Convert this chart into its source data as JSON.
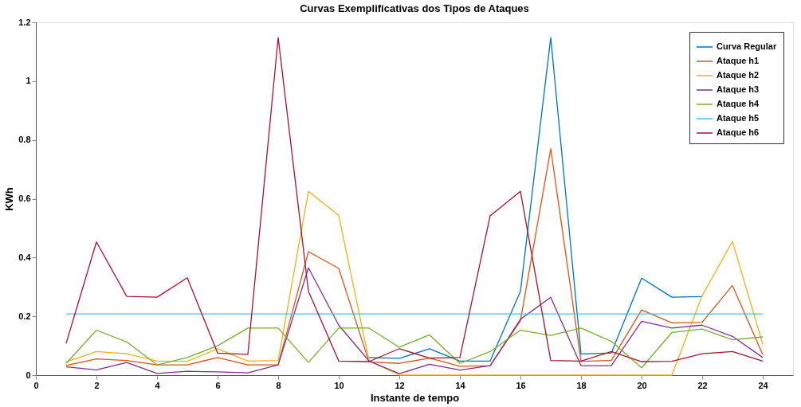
{
  "chart_data": {
    "type": "line",
    "title": "Curvas Exemplificativas dos Tipos de Ataques",
    "xlabel": "Instante de tempo",
    "ylabel": "KWh",
    "x": [
      1,
      2,
      3,
      4,
      5,
      6,
      7,
      8,
      9,
      10,
      11,
      12,
      13,
      14,
      15,
      16,
      17,
      18,
      19,
      20,
      21,
      22,
      23,
      24
    ],
    "xlim": [
      0,
      25
    ],
    "xticks": [
      0,
      2,
      4,
      6,
      8,
      10,
      12,
      14,
      16,
      18,
      20,
      22,
      24
    ],
    "ylim": [
      0,
      1.2
    ],
    "yticks": [
      0,
      0.2,
      0.4,
      0.6,
      0.8,
      1,
      1.2
    ],
    "legend": "top right",
    "series": [
      {
        "name": "Curva Regular",
        "color": "#0072bd",
        "values": [
          null,
          null,
          null,
          null,
          null,
          null,
          null,
          null,
          null,
          null,
          0.06,
          0.057,
          0.09,
          0.048,
          0.048,
          0.285,
          1.148,
          0.072,
          0.075,
          0.33,
          0.265,
          0.267,
          null,
          null
        ]
      },
      {
        "name": "Ataque h1",
        "color": "#d95319",
        "values": [
          0.033,
          0.055,
          0.05,
          0.035,
          0.035,
          0.06,
          0.035,
          0.035,
          0.42,
          0.363,
          0.045,
          0.04,
          0.058,
          0.03,
          0.032,
          0.185,
          0.77,
          0.047,
          0.05,
          0.222,
          0.178,
          0.18,
          0.305,
          0.07
        ]
      },
      {
        "name": "Ataque h2",
        "color": "#edb120",
        "values": [
          0.045,
          0.08,
          0.073,
          0.048,
          0.047,
          0.09,
          0.048,
          0.05,
          0.625,
          0.543,
          0.05,
          0,
          0,
          0,
          0,
          0,
          0,
          0,
          0,
          0,
          0,
          0.27,
          0.455,
          0.105
        ]
      },
      {
        "name": "Ataque h3",
        "color": "#7e2f8e",
        "values": [
          0.028,
          0.018,
          0.043,
          0.006,
          0.013,
          0.011,
          0.008,
          0.035,
          0.365,
          0.17,
          0.048,
          0.005,
          0.037,
          0.017,
          0.032,
          0.19,
          0.265,
          0.032,
          0.032,
          0.183,
          0.16,
          0.17,
          0.132,
          0.06
        ]
      },
      {
        "name": "Ataque h4",
        "color": "#77ac30",
        "values": [
          0.04,
          0.153,
          0.113,
          0.035,
          0.06,
          0.1,
          0.16,
          0.16,
          0.043,
          0.16,
          0.16,
          0.095,
          0.137,
          0.04,
          0.08,
          0.153,
          0.135,
          0.16,
          0.115,
          0.025,
          0.145,
          0.157,
          0.12,
          0.13
        ]
      },
      {
        "name": "Ataque h5",
        "color": "#4dbeee",
        "values": [
          0.208,
          0.208,
          0.208,
          0.208,
          0.208,
          0.208,
          0.208,
          0.208,
          0.208,
          0.208,
          0.208,
          0.208,
          0.208,
          0.208,
          0.208,
          0.208,
          0.208,
          0.208,
          0.208,
          0.208,
          0.208,
          0.208,
          0.208,
          0.208
        ]
      },
      {
        "name": "Ataque h6",
        "color": "#a2142f",
        "values": [
          0.108,
          0.453,
          0.268,
          0.265,
          0.331,
          0.075,
          0.071,
          1.148,
          0.285,
          0.048,
          0.046,
          0.09,
          0.058,
          0.06,
          0.542,
          0.625,
          0.05,
          0.048,
          0.08,
          0.046,
          0.047,
          0.073,
          0.08,
          0.048
        ]
      }
    ]
  }
}
